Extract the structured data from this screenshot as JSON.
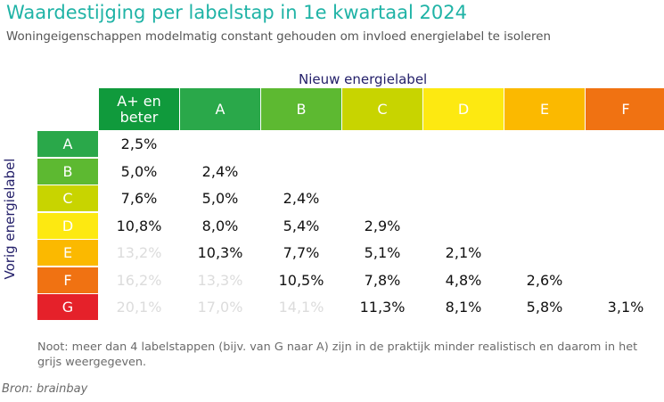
{
  "chart_data": {
    "type": "table",
    "title": "Waardestijging per labelstap in 1e kwartaal 2024",
    "subtitle": "Woningeigenschappen modelmatig constant gehouden om invloed energielabel te isoleren",
    "column_axis_label": "Nieuw energielabel",
    "row_axis_label": "Vorig energielabel",
    "columns": [
      {
        "label": "A+ en beter",
        "color": "#109a3c"
      },
      {
        "label": "A",
        "color": "#2aa84a"
      },
      {
        "label": "B",
        "color": "#5db931"
      },
      {
        "label": "C",
        "color": "#c8d400"
      },
      {
        "label": "D",
        "color": "#fde911"
      },
      {
        "label": "E",
        "color": "#fbb900"
      },
      {
        "label": "F",
        "color": "#f07212"
      }
    ],
    "rows": [
      {
        "label": "A",
        "color": "#2aa84a",
        "values": [
          "2,5%",
          "",
          "",
          "",
          "",
          "",
          ""
        ],
        "grey": [
          false,
          false,
          false,
          false,
          false,
          false,
          false
        ]
      },
      {
        "label": "B",
        "color": "#5db931",
        "values": [
          "5,0%",
          "2,4%",
          "",
          "",
          "",
          "",
          ""
        ],
        "grey": [
          false,
          false,
          false,
          false,
          false,
          false,
          false
        ]
      },
      {
        "label": "C",
        "color": "#c8d400",
        "values": [
          "7,6%",
          "5,0%",
          "2,4%",
          "",
          "",
          "",
          ""
        ],
        "grey": [
          false,
          false,
          false,
          false,
          false,
          false,
          false
        ]
      },
      {
        "label": "D",
        "color": "#fde911",
        "values": [
          "10,8%",
          "8,0%",
          "5,4%",
          "2,9%",
          "",
          "",
          ""
        ],
        "grey": [
          false,
          false,
          false,
          false,
          false,
          false,
          false
        ]
      },
      {
        "label": "E",
        "color": "#fbb900",
        "values": [
          "13,2%",
          "10,3%",
          "7,7%",
          "5,1%",
          "2,1%",
          "",
          ""
        ],
        "grey": [
          true,
          false,
          false,
          false,
          false,
          false,
          false
        ]
      },
      {
        "label": "F",
        "color": "#f07212",
        "values": [
          "16,2%",
          "13,3%",
          "10,5%",
          "7,8%",
          "4,8%",
          "2,6%",
          ""
        ],
        "grey": [
          true,
          true,
          false,
          false,
          false,
          false,
          false
        ]
      },
      {
        "label": "G",
        "color": "#e5212a",
        "values": [
          "20,1%",
          "17,0%",
          "14,1%",
          "11,3%",
          "8,1%",
          "5,8%",
          "3,1%"
        ],
        "grey": [
          true,
          true,
          true,
          false,
          false,
          false,
          false
        ]
      }
    ],
    "note": "Noot: meer dan 4 labelstappen (bijv. van G naar A) zijn  in de praktijk minder realistisch en daarom in het  grijs weergegeven.",
    "source": "Bron: brainbay"
  }
}
